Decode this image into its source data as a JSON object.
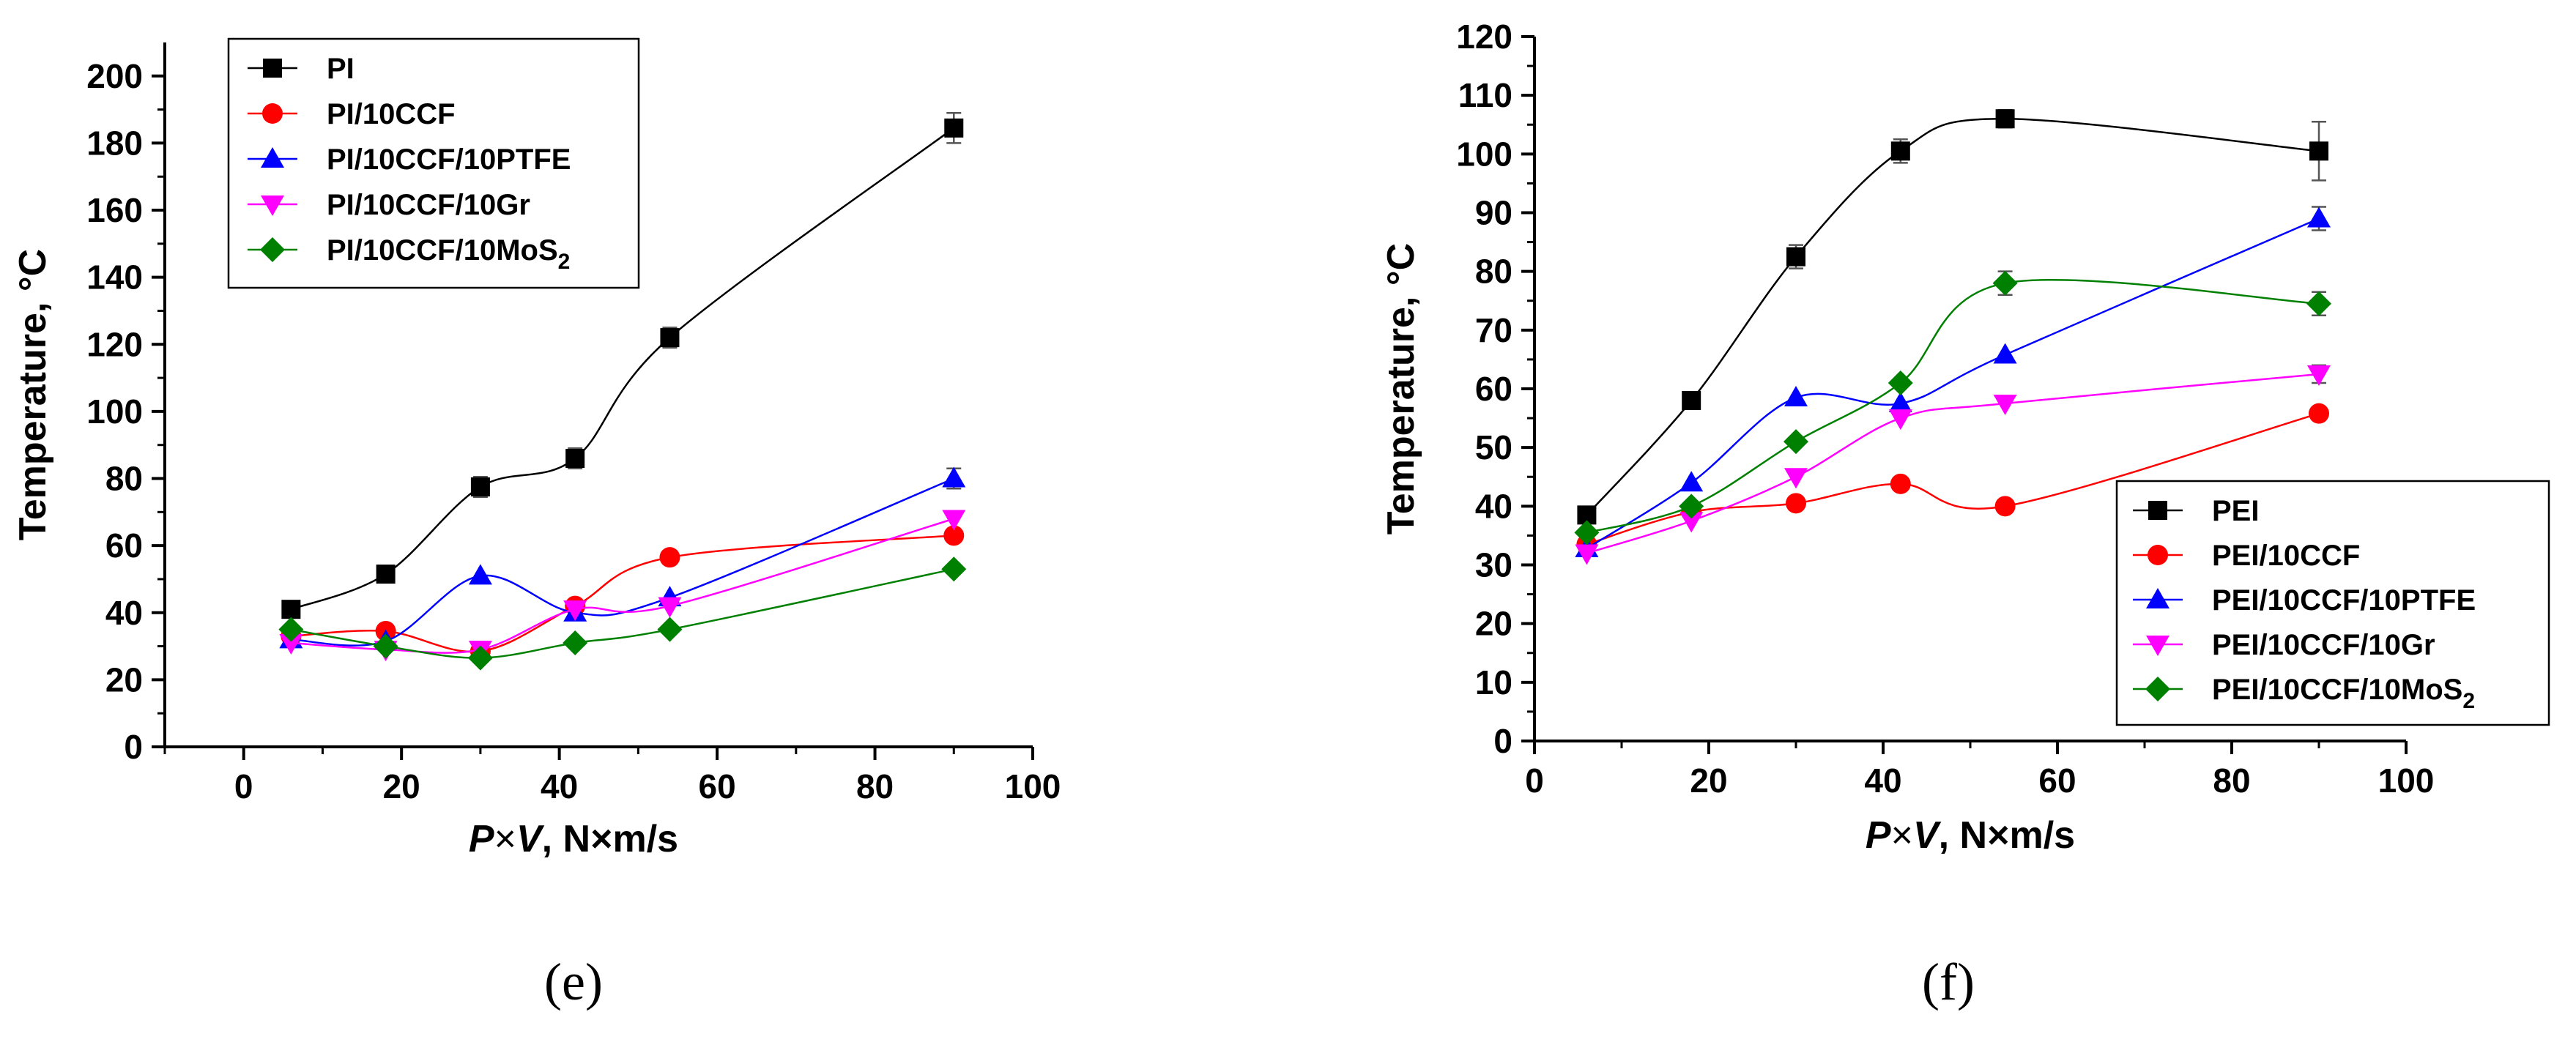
{
  "chart_data": [
    {
      "type": "scatter",
      "panel_label": "(e)",
      "xlabel": {
        "var1": "P",
        "times": "×",
        "var2": "V",
        "units": ", N×m/s"
      },
      "ylabel": "Temperature, °C",
      "xlim": [
        -10,
        100
      ],
      "ylim": [
        0,
        210
      ],
      "xticks": [
        "0",
        "20",
        "40",
        "60",
        "80",
        "100"
      ],
      "xtick_values": [
        0,
        20,
        40,
        60,
        80,
        100
      ],
      "yticks": [
        "0",
        "20",
        "40",
        "60",
        "80",
        "100",
        "120",
        "140",
        "160",
        "180",
        "200"
      ],
      "ytick_values": [
        0,
        20,
        40,
        60,
        80,
        100,
        120,
        140,
        160,
        180,
        200
      ],
      "legend_position": "top-left",
      "series": [
        {
          "name": "PI",
          "color": "#000000",
          "marker": "square",
          "x": [
            6,
            18,
            30,
            42,
            54,
            90
          ],
          "y": [
            41,
            51.5,
            77.5,
            86,
            122,
            184.5
          ],
          "err": [
            1.5,
            1.5,
            3,
            3,
            3,
            4.5
          ]
        },
        {
          "name": "PI/10CCF",
          "color": "#ff0000",
          "marker": "circle",
          "x": [
            6,
            18,
            30,
            42,
            54,
            90
          ],
          "y": [
            33,
            34.5,
            28.5,
            42,
            56.5,
            63
          ],
          "err": [
            0,
            0,
            0,
            0,
            0,
            0
          ]
        },
        {
          "name": "PI/10CCF/10PTFE",
          "color": "#0000ff",
          "marker": "triangle-up",
          "x": [
            6,
            18,
            30,
            42,
            54,
            90
          ],
          "y": [
            32,
            31.5,
            51,
            40,
            44.5,
            80
          ],
          "err": [
            0,
            0,
            0,
            0,
            0,
            3
          ]
        },
        {
          "name": "PI/10CCF/10Gr",
          "color": "#ff00ff",
          "marker": "triangle-down",
          "x": [
            6,
            18,
            30,
            42,
            54,
            90
          ],
          "y": [
            31,
            29,
            29,
            41,
            42,
            68
          ],
          "err": [
            0,
            0,
            0,
            0,
            0,
            0
          ]
        },
        {
          "name": "PI/10CCF/10MoS",
          "legend_sub": "2",
          "color": "#008000",
          "marker": "diamond",
          "x": [
            6,
            18,
            30,
            42,
            54,
            90
          ],
          "y": [
            35,
            30,
            26.5,
            31,
            35,
            53
          ],
          "err": [
            0,
            0,
            0,
            0,
            0,
            0
          ]
        }
      ]
    },
    {
      "type": "scatter",
      "panel_label": "(f)",
      "xlabel": {
        "var1": "P",
        "times": "×",
        "var2": "V",
        "units": ", N×m/s"
      },
      "ylabel": "Temperature, °C",
      "xlim": [
        0,
        100
      ],
      "ylim": [
        0,
        120
      ],
      "xticks": [
        "0",
        "20",
        "40",
        "60",
        "80",
        "100"
      ],
      "xtick_values": [
        0,
        20,
        40,
        60,
        80,
        100
      ],
      "yticks": [
        "0",
        "10",
        "20",
        "30",
        "40",
        "50",
        "60",
        "70",
        "80",
        "90",
        "100",
        "110",
        "120"
      ],
      "ytick_values": [
        0,
        10,
        20,
        30,
        40,
        50,
        60,
        70,
        80,
        90,
        100,
        110,
        120
      ],
      "legend_position": "bottom-right",
      "series": [
        {
          "name": "PEI",
          "color": "#000000",
          "marker": "square",
          "x": [
            6,
            18,
            30,
            42,
            54,
            90
          ],
          "y": [
            38.5,
            58,
            82.5,
            100.5,
            106,
            100.5
          ],
          "err": [
            1,
            1,
            2,
            2,
            1.5,
            5
          ]
        },
        {
          "name": "PEI/10CCF",
          "color": "#ff0000",
          "marker": "circle",
          "x": [
            6,
            18,
            30,
            42,
            54,
            90
          ],
          "y": [
            33.5,
            39,
            40.5,
            43.8,
            40,
            55.8
          ],
          "err": [
            0,
            0,
            0,
            0,
            0,
            0
          ]
        },
        {
          "name": "PEI/10CCF/10PTFE",
          "color": "#0000ff",
          "marker": "triangle-up",
          "x": [
            6,
            18,
            30,
            42,
            54,
            90
          ],
          "y": [
            32.8,
            44,
            58.5,
            57.5,
            65.8,
            89
          ],
          "err": [
            0,
            0,
            0,
            0,
            0,
            2
          ]
        },
        {
          "name": "PEI/10CCF/10Gr",
          "color": "#ff00ff",
          "marker": "triangle-down",
          "x": [
            6,
            18,
            30,
            42,
            54,
            90
          ],
          "y": [
            32,
            37.5,
            45,
            55,
            57.5,
            62.5
          ],
          "err": [
            0,
            0,
            0,
            0,
            0,
            1.5
          ]
        },
        {
          "name": "PEI/10CCF/10MoS",
          "legend_sub": "2",
          "color": "#008000",
          "marker": "diamond",
          "x": [
            6,
            18,
            30,
            42,
            54,
            90
          ],
          "y": [
            35.5,
            40,
            51,
            61,
            78,
            74.5
          ],
          "err": [
            0,
            0,
            0,
            0,
            2,
            2
          ]
        }
      ]
    }
  ]
}
